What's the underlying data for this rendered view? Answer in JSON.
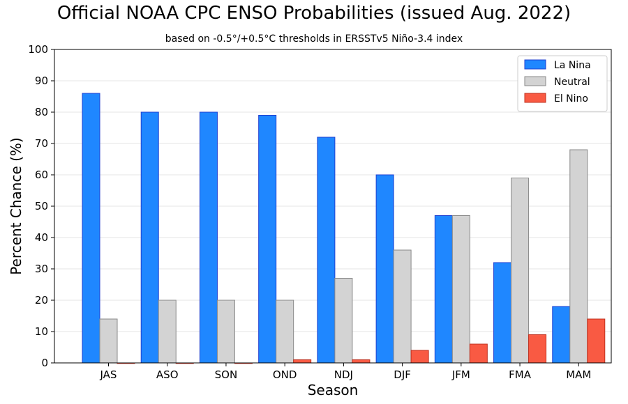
{
  "chart_data": {
    "type": "bar",
    "title": "Official NOAA CPC ENSO Probabilities (issued Aug. 2022)",
    "subtitle": "based on -0.5°/+0.5°C thresholds in ERSSTv5 Niño-3.4 index",
    "xlabel": "Season",
    "ylabel": "Percent Chance (%)",
    "ylim": [
      0,
      100
    ],
    "yticks": [
      0,
      10,
      20,
      30,
      40,
      50,
      60,
      70,
      80,
      90,
      100
    ],
    "grid": "horizontal",
    "legend_position": "top-right",
    "categories": [
      "JAS",
      "ASO",
      "SON",
      "OND",
      "NDJ",
      "DJF",
      "JFM",
      "FMA",
      "MAM"
    ],
    "series": [
      {
        "name": "La Nina",
        "color": "#1f87ff",
        "values": [
          86,
          80,
          80,
          79,
          72,
          60,
          47,
          32,
          18
        ]
      },
      {
        "name": "Neutral",
        "color": "#d3d3d3",
        "values": [
          14,
          20,
          20,
          20,
          27,
          36,
          47,
          59,
          68
        ]
      },
      {
        "name": "El Nino",
        "color": "#f95a43",
        "values": [
          0,
          0,
          0,
          1,
          1,
          4,
          6,
          9,
          14
        ]
      }
    ]
  }
}
